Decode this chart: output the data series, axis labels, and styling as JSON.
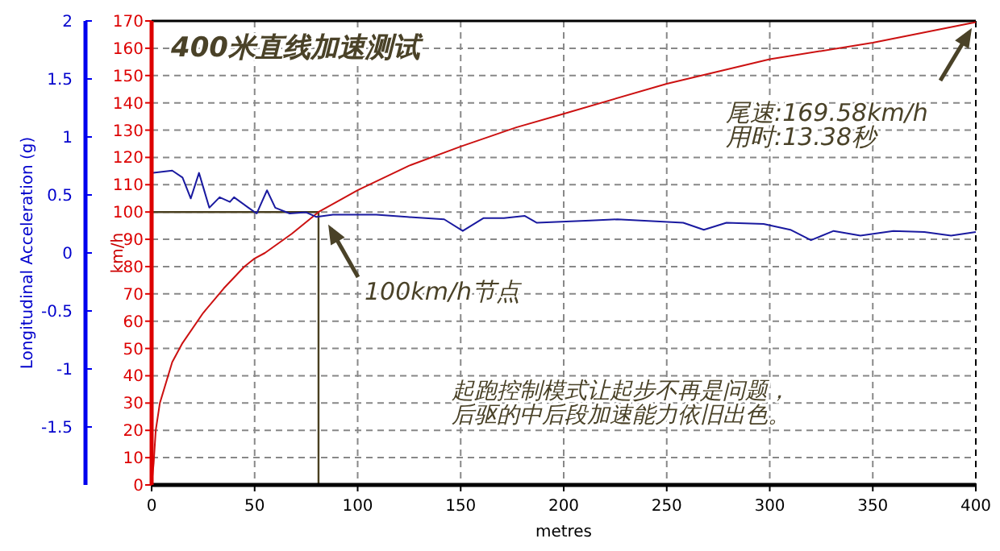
{
  "chart_data": {
    "type": "line",
    "title": "400米直线加速测试",
    "xlabel": "metres",
    "ylabel": "km/h",
    "y2label": "Longitudinal Acceleration (g)",
    "xlim": [
      0,
      400
    ],
    "xticks": [
      0,
      50,
      100,
      150,
      200,
      250,
      300,
      350,
      400
    ],
    "ylim": [
      0,
      170
    ],
    "yticks": [
      0,
      10,
      20,
      30,
      40,
      50,
      60,
      70,
      80,
      90,
      100,
      110,
      120,
      130,
      140,
      150,
      160,
      170
    ],
    "y2lim": [
      -2,
      2
    ],
    "y2ticks": [
      -1.5,
      -1,
      -0.5,
      0,
      0.5,
      1,
      1.5,
      2
    ],
    "grid": true,
    "series": [
      {
        "color": "#cc1111",
        "x": [
          0,
          1,
          2,
          4,
          10,
          15,
          25,
          35,
          45,
          50,
          55,
          68,
          81,
          100,
          125,
          150,
          177,
          200,
          250,
          300,
          350,
          400
        ],
        "values": [
          0,
          8,
          20,
          30,
          45,
          52,
          63,
          72,
          80,
          83,
          85,
          92,
          100,
          108,
          117,
          124,
          131,
          136,
          147,
          156,
          162,
          169.58
        ]
      },
      {
        "color": "#1a1aa0",
        "axis": "y2",
        "x": [
          0,
          10,
          15,
          19,
          23,
          28,
          33,
          38,
          40,
          47,
          51,
          56,
          60,
          67,
          75,
          80,
          88,
          109,
          124,
          142,
          151,
          161,
          171,
          181,
          187,
          213,
          226,
          258,
          268,
          279,
          297,
          310,
          320,
          331,
          344,
          360,
          375,
          388,
          400
        ],
        "values": [
          0.69,
          0.71,
          0.65,
          0.47,
          0.69,
          0.39,
          0.48,
          0.44,
          0.48,
          0.39,
          0.34,
          0.54,
          0.39,
          0.34,
          0.35,
          0.31,
          0.33,
          0.33,
          0.31,
          0.29,
          0.19,
          0.3,
          0.3,
          0.32,
          0.26,
          0.28,
          0.29,
          0.26,
          0.2,
          0.26,
          0.25,
          0.2,
          0.11,
          0.19,
          0.15,
          0.19,
          0.18,
          0.15,
          0.18
        ]
      }
    ],
    "ref_lines": [
      {
        "axis": "y",
        "value": 100,
        "color": "#4a4020"
      },
      {
        "axis": "x",
        "value": 81,
        "color": "#4a4020"
      }
    ],
    "annotations": [
      "100km/h节点",
      "尾速:169.58km/h",
      "用时:13.38秒",
      "起跑控制模式让起步不再是问题，",
      "后驱的中后段加速能力依旧出色。"
    ]
  }
}
